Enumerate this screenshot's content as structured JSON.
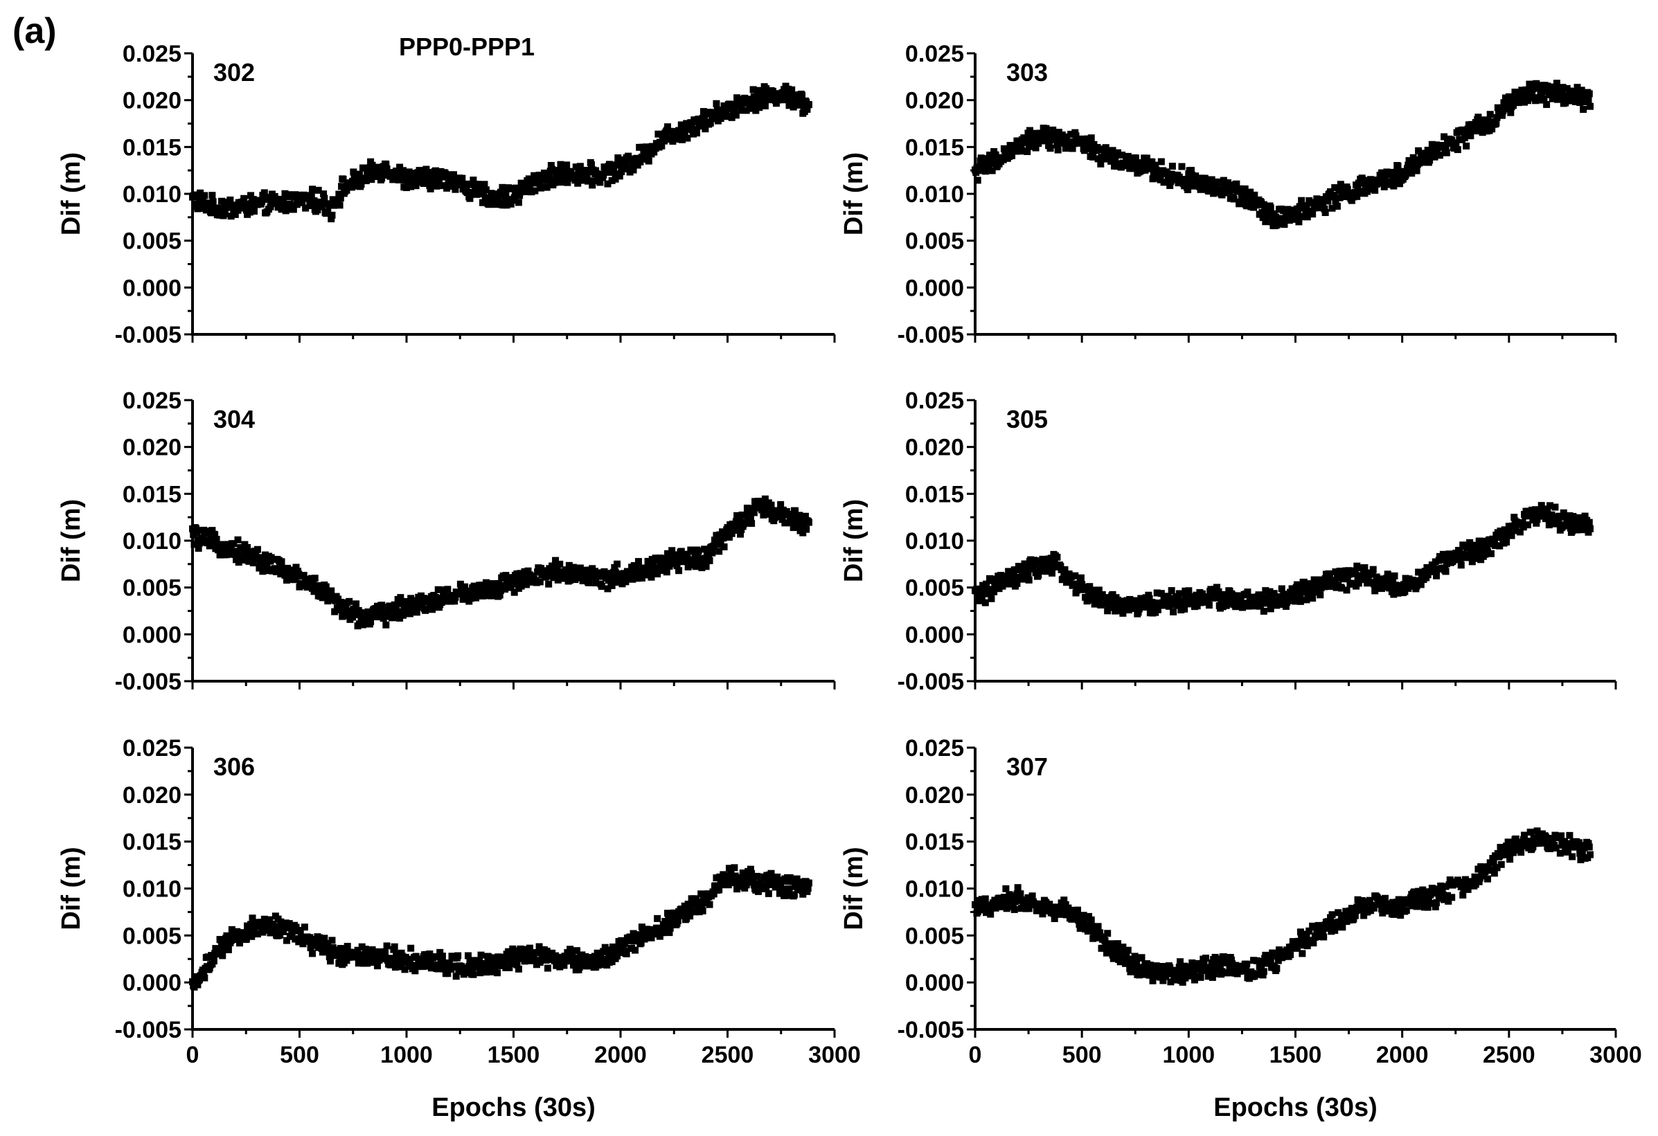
{
  "figure_label": "(a)",
  "title": "PPP0-PPP1",
  "chart_data": [
    {
      "type": "scatter",
      "panel": "302",
      "xlabel": "Epochs (30s)",
      "ylabel": "Dif (m)",
      "xlim": [
        0,
        3000
      ],
      "ylim": [
        -0.005,
        0.025
      ],
      "xticks": [
        "0",
        "500",
        "1000",
        "1500",
        "2000",
        "2500",
        "3000"
      ],
      "yticks": [
        "-0.005",
        "0.000",
        "0.005",
        "0.010",
        "0.015",
        "0.020",
        "0.025"
      ],
      "series": [
        {
          "name": "302",
          "x": [
            0,
            100,
            200,
            300,
            400,
            500,
            600,
            650,
            700,
            800,
            900,
            1000,
            1100,
            1200,
            1300,
            1400,
            1500,
            1600,
            1700,
            1800,
            1900,
            2000,
            2100,
            2200,
            2300,
            2400,
            2500,
            2600,
            2700,
            2800,
            2880
          ],
          "y": [
            0.0095,
            0.0085,
            0.0086,
            0.0088,
            0.009,
            0.0093,
            0.0092,
            0.0085,
            0.0105,
            0.0118,
            0.0128,
            0.0115,
            0.0115,
            0.0118,
            0.0105,
            0.0095,
            0.0098,
            0.0113,
            0.012,
            0.0122,
            0.012,
            0.0128,
            0.014,
            0.016,
            0.017,
            0.018,
            0.019,
            0.02,
            0.0205,
            0.0205,
            0.0192
          ]
        }
      ]
    },
    {
      "type": "scatter",
      "panel": "303",
      "xlabel": "Epochs (30s)",
      "ylabel": "Dif (m)",
      "xlim": [
        0,
        3000
      ],
      "ylim": [
        -0.005,
        0.025
      ],
      "xticks": [
        "0",
        "500",
        "1000",
        "1500",
        "2000",
        "2500",
        "3000"
      ],
      "yticks": [
        "-0.005",
        "0.000",
        "0.005",
        "0.010",
        "0.015",
        "0.020",
        "0.025"
      ],
      "series": [
        {
          "name": "303",
          "x": [
            0,
            100,
            200,
            300,
            400,
            500,
            600,
            700,
            800,
            900,
            1000,
            1100,
            1200,
            1300,
            1350,
            1400,
            1500,
            1600,
            1700,
            1800,
            1900,
            2000,
            2100,
            2200,
            2300,
            2400,
            2500,
            2600,
            2700,
            2800,
            2880
          ],
          "y": [
            0.0125,
            0.0135,
            0.015,
            0.016,
            0.0158,
            0.0152,
            0.0142,
            0.0133,
            0.0128,
            0.012,
            0.0115,
            0.011,
            0.0102,
            0.0095,
            0.0085,
            0.0075,
            0.0078,
            0.0088,
            0.0098,
            0.0105,
            0.0112,
            0.0123,
            0.0138,
            0.015,
            0.0163,
            0.0175,
            0.0195,
            0.0208,
            0.0208,
            0.0205,
            0.02
          ]
        }
      ]
    },
    {
      "type": "scatter",
      "panel": "304",
      "xlabel": "Epochs (30s)",
      "ylabel": "Dif (m)",
      "xlim": [
        0,
        3000
      ],
      "ylim": [
        -0.005,
        0.025
      ],
      "xticks": [
        "0",
        "500",
        "1000",
        "1500",
        "2000",
        "2500",
        "3000"
      ],
      "yticks": [
        "-0.005",
        "0.000",
        "0.005",
        "0.010",
        "0.015",
        "0.020",
        "0.025"
      ],
      "series": [
        {
          "name": "304",
          "x": [
            0,
            100,
            200,
            300,
            400,
            500,
            600,
            700,
            800,
            900,
            1000,
            1100,
            1200,
            1300,
            1400,
            1500,
            1600,
            1700,
            1800,
            1900,
            2000,
            2100,
            2200,
            2300,
            2400,
            2500,
            2600,
            2650,
            2700,
            2800,
            2880
          ],
          "y": [
            0.0105,
            0.0098,
            0.009,
            0.0082,
            0.007,
            0.006,
            0.0048,
            0.0028,
            0.0018,
            0.0022,
            0.003,
            0.0035,
            0.004,
            0.0045,
            0.0048,
            0.0055,
            0.006,
            0.0068,
            0.0065,
            0.006,
            0.0063,
            0.0068,
            0.0075,
            0.008,
            0.0082,
            0.0108,
            0.0125,
            0.0138,
            0.013,
            0.0125,
            0.0118
          ]
        }
      ]
    },
    {
      "type": "scatter",
      "panel": "305",
      "xlabel": "Epochs (30s)",
      "ylabel": "Dif (m)",
      "xlim": [
        0,
        3000
      ],
      "ylim": [
        -0.005,
        0.025
      ],
      "xticks": [
        "0",
        "500",
        "1000",
        "1500",
        "2000",
        "2500",
        "3000"
      ],
      "yticks": [
        "-0.005",
        "0.000",
        "0.005",
        "0.010",
        "0.015",
        "0.020",
        "0.025"
      ],
      "series": [
        {
          "name": "305",
          "x": [
            0,
            100,
            200,
            300,
            350,
            400,
            500,
            600,
            700,
            800,
            900,
            1000,
            1100,
            1200,
            1300,
            1400,
            1500,
            1600,
            1700,
            1800,
            1900,
            2000,
            2100,
            2200,
            2300,
            2400,
            2500,
            2600,
            2700,
            2800,
            2880
          ],
          "y": [
            0.004,
            0.0052,
            0.0062,
            0.0072,
            0.0075,
            0.007,
            0.0048,
            0.0035,
            0.003,
            0.0032,
            0.0035,
            0.0037,
            0.004,
            0.0038,
            0.0034,
            0.0035,
            0.0042,
            0.0052,
            0.0058,
            0.0062,
            0.0055,
            0.005,
            0.0062,
            0.0078,
            0.0085,
            0.0092,
            0.0112,
            0.0128,
            0.0125,
            0.0118,
            0.0113
          ]
        }
      ]
    },
    {
      "type": "scatter",
      "panel": "306",
      "xlabel": "Epochs (30s)",
      "ylabel": "Dif (m)",
      "xlim": [
        0,
        3000
      ],
      "ylim": [
        -0.005,
        0.025
      ],
      "xticks": [
        "0",
        "500",
        "1000",
        "1500",
        "2000",
        "2500",
        "3000"
      ],
      "yticks": [
        "-0.005",
        "0.000",
        "0.005",
        "0.010",
        "0.015",
        "0.020",
        "0.025"
      ],
      "series": [
        {
          "name": "306",
          "x": [
            0,
            50,
            100,
            200,
            300,
            400,
            500,
            600,
            700,
            800,
            900,
            1000,
            1100,
            1200,
            1300,
            1400,
            1500,
            1600,
            1700,
            1800,
            1900,
            2000,
            2100,
            2200,
            2300,
            2400,
            2500,
            2600,
            2700,
            2800,
            2880
          ],
          "y": [
            -0.0005,
            0.0012,
            0.0028,
            0.0048,
            0.006,
            0.006,
            0.005,
            0.0038,
            0.003,
            0.003,
            0.0028,
            0.0025,
            0.0022,
            0.002,
            0.0018,
            0.002,
            0.0025,
            0.0028,
            0.0025,
            0.0022,
            0.0025,
            0.0035,
            0.0048,
            0.006,
            0.0075,
            0.009,
            0.0112,
            0.011,
            0.0105,
            0.0102,
            0.0098
          ]
        }
      ]
    },
    {
      "type": "scatter",
      "panel": "307",
      "xlabel": "Epochs (30s)",
      "ylabel": "Dif (m)",
      "xlim": [
        0,
        3000
      ],
      "ylim": [
        -0.005,
        0.025
      ],
      "xticks": [
        "0",
        "500",
        "1000",
        "1500",
        "2000",
        "2500",
        "3000"
      ],
      "yticks": [
        "-0.005",
        "0.000",
        "0.005",
        "0.010",
        "0.015",
        "0.020",
        "0.025"
      ],
      "series": [
        {
          "name": "307",
          "x": [
            0,
            100,
            200,
            300,
            400,
            500,
            600,
            700,
            800,
            900,
            1000,
            1100,
            1200,
            1300,
            1400,
            1500,
            1600,
            1700,
            1800,
            1900,
            2000,
            2100,
            2200,
            2300,
            2400,
            2500,
            2600,
            2700,
            2800,
            2880
          ],
          "y": [
            0.0078,
            0.0085,
            0.009,
            0.0082,
            0.0078,
            0.0068,
            0.0045,
            0.0025,
            0.0015,
            0.0008,
            0.0012,
            0.0018,
            0.0018,
            0.0012,
            0.0022,
            0.0038,
            0.0052,
            0.0065,
            0.0078,
            0.0082,
            0.008,
            0.0088,
            0.0095,
            0.0105,
            0.012,
            0.0142,
            0.0152,
            0.015,
            0.0145,
            0.0138
          ]
        }
      ]
    }
  ]
}
